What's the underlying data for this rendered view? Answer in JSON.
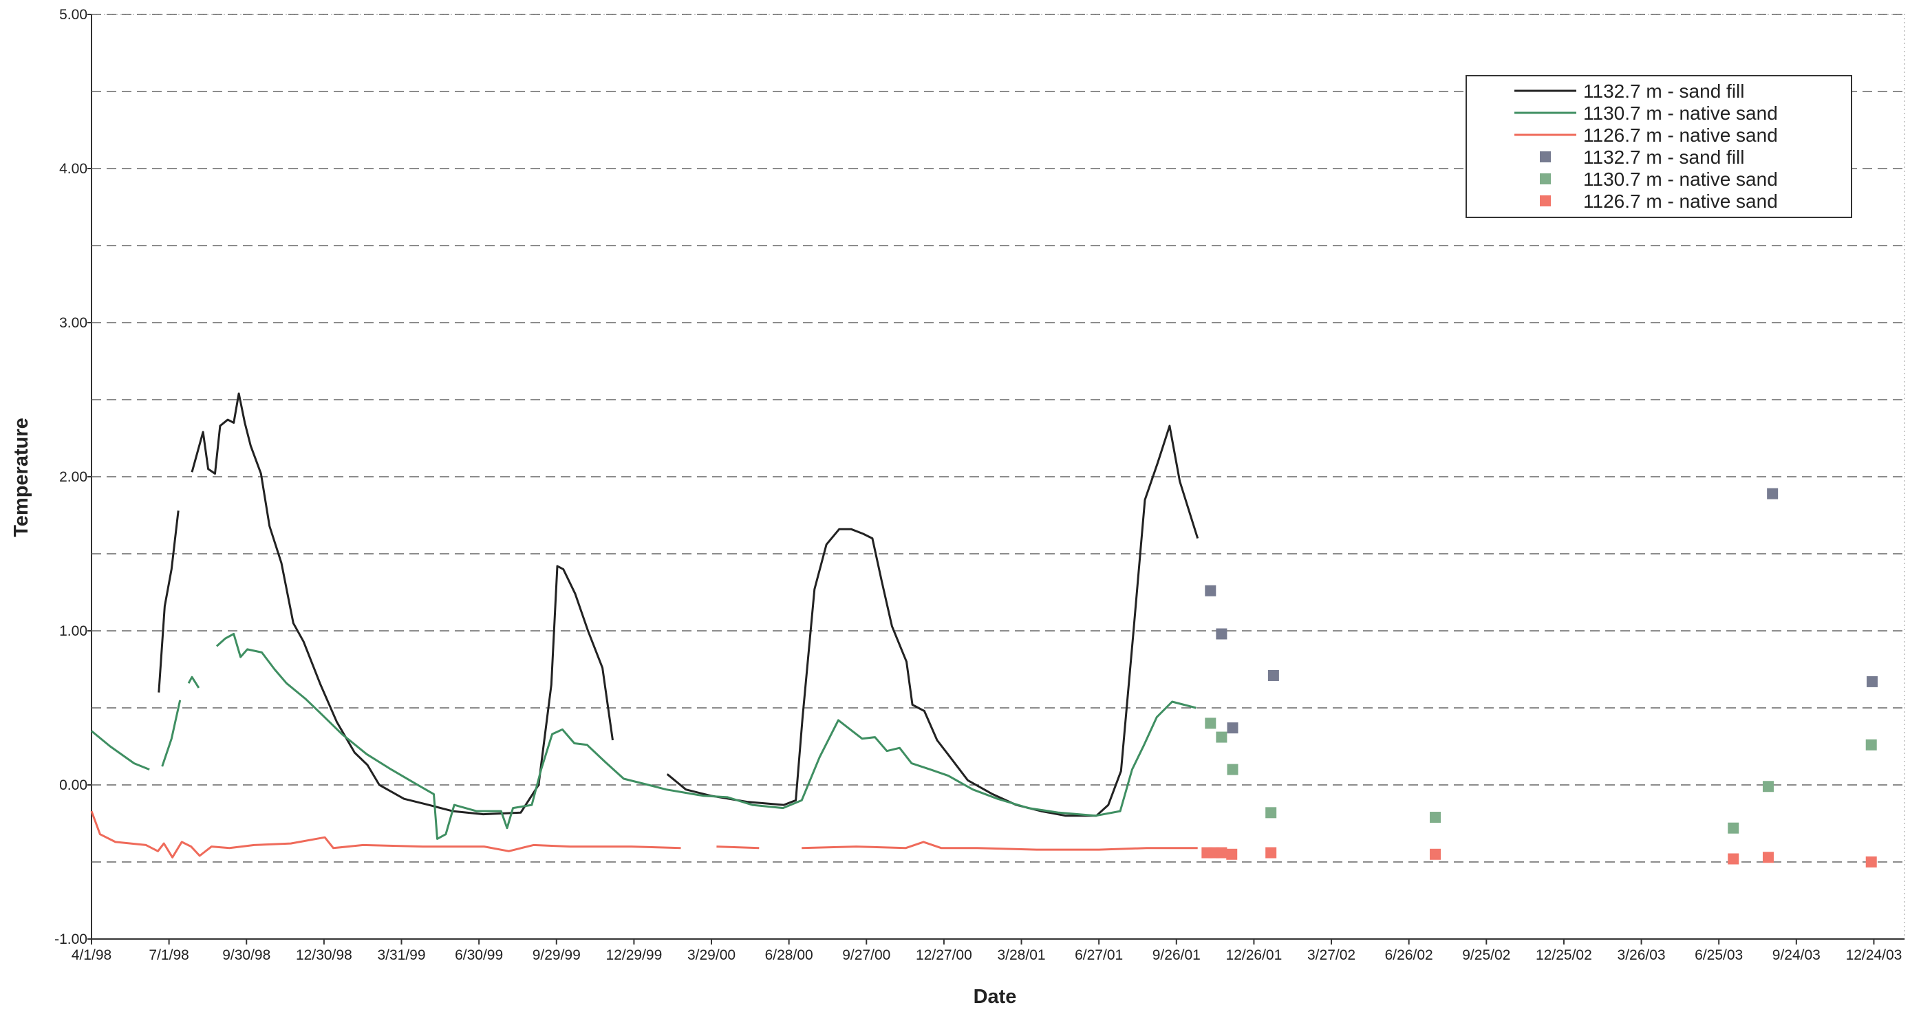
{
  "chart_data": {
    "type": "line",
    "x_label": "Date",
    "y_label": "Temperature",
    "xlim": [
      "1998-04-01",
      "2004-01-29"
    ],
    "xticks": [
      {
        "value": "1998-04-01",
        "label": "4/1/98"
      },
      {
        "value": "1998-07-01",
        "label": "7/1/98"
      },
      {
        "value": "1998-09-30",
        "label": "9/30/98"
      },
      {
        "value": "1998-12-30",
        "label": "12/30/98"
      },
      {
        "value": "1999-03-31",
        "label": "3/31/99"
      },
      {
        "value": "1999-06-30",
        "label": "6/30/99"
      },
      {
        "value": "1999-09-29",
        "label": "9/29/99"
      },
      {
        "value": "1999-12-29",
        "label": "12/29/99"
      },
      {
        "value": "2000-03-29",
        "label": "3/29/00"
      },
      {
        "value": "2000-06-28",
        "label": "6/28/00"
      },
      {
        "value": "2000-09-27",
        "label": "9/27/00"
      },
      {
        "value": "2000-12-27",
        "label": "12/27/00"
      },
      {
        "value": "2001-03-28",
        "label": "3/28/01"
      },
      {
        "value": "2001-06-27",
        "label": "6/27/01"
      },
      {
        "value": "2001-09-26",
        "label": "9/26/01"
      },
      {
        "value": "2001-12-26",
        "label": "12/26/01"
      },
      {
        "value": "2002-03-27",
        "label": "3/27/02"
      },
      {
        "value": "2002-06-26",
        "label": "6/26/02"
      },
      {
        "value": "2002-09-25",
        "label": "9/25/02"
      },
      {
        "value": "2002-12-25",
        "label": "12/25/02"
      },
      {
        "value": "2003-03-26",
        "label": "3/26/03"
      },
      {
        "value": "2003-06-25",
        "label": "6/25/03"
      },
      {
        "value": "2003-09-24",
        "label": "9/24/03"
      },
      {
        "value": "2003-12-24",
        "label": "12/24/03"
      }
    ],
    "ylim": [
      -1,
      5
    ],
    "yticks": [
      {
        "value": -1,
        "label": "-1.00"
      },
      {
        "value": 0,
        "label": "0.00"
      },
      {
        "value": 1,
        "label": "1.00"
      },
      {
        "value": 2,
        "label": "2.00"
      },
      {
        "value": 3,
        "label": "3.00"
      },
      {
        "value": 4,
        "label": "4.00"
      },
      {
        "value": 5,
        "label": "5.00"
      }
    ],
    "grid": true,
    "minor_ygrid": [
      -0.5,
      0.5,
      1.5,
      2.5,
      3.5,
      4.5
    ],
    "legend": "upper right",
    "series": [
      {
        "name": "1132.7 m - sand fill",
        "kind": "line",
        "color": "#222222",
        "x": [
          "1998-06-19",
          "1998-06-26",
          "1998-07-04",
          "1998-07-12",
          "1998-07-20",
          "1998-07-28",
          "1998-08-10",
          "1998-08-16",
          "1998-08-24",
          "1998-08-30",
          "1998-09-08",
          "1998-09-15",
          "1998-09-21",
          "1998-09-28",
          "1998-10-05",
          "1998-10-17",
          "1998-10-27",
          "1998-11-10",
          "1998-11-24",
          "1998-12-06",
          "1998-12-26",
          "1999-01-14",
          "1999-02-04",
          "1999-02-19",
          "1999-03-05",
          "1999-04-03",
          "1999-05-02",
          "1999-05-30",
          "1999-07-05",
          "1999-08-18",
          "1999-09-08",
          "1999-09-23",
          "1999-09-30",
          "1999-10-07",
          "1999-10-21",
          "1999-11-05",
          "1999-11-22",
          "1999-12-04",
          "1999-12-30",
          "2000-02-06",
          "2000-02-28",
          "2000-03-28",
          "2000-05-10",
          "2000-06-22",
          "2000-07-06",
          "2000-07-14",
          "2000-07-28",
          "2000-08-11",
          "2000-08-26",
          "2000-09-09",
          "2000-09-23",
          "2000-10-04",
          "2000-10-15",
          "2000-10-27",
          "2000-11-13",
          "2000-11-20",
          "2000-12-04",
          "2000-12-19",
          "2001-01-02",
          "2001-01-24",
          "2001-02-22",
          "2001-03-22",
          "2001-04-20",
          "2001-05-19",
          "2001-06-24",
          "2001-07-08",
          "2001-07-23",
          "2001-08-06",
          "2001-08-20",
          "2001-09-04",
          "2001-09-18",
          "2001-09-30",
          "2001-10-21"
        ],
        "values": [
          0.6,
          1.16,
          1.4,
          1.78,
          null,
          2.03,
          2.29,
          2.05,
          2.02,
          2.33,
          2.37,
          2.35,
          2.54,
          2.35,
          2.2,
          2.02,
          1.68,
          1.44,
          1.05,
          0.93,
          0.65,
          0.41,
          0.21,
          0.13,
          0.0,
          -0.09,
          -0.13,
          -0.17,
          -0.19,
          -0.18,
          0.0,
          0.65,
          1.42,
          1.4,
          1.24,
          1.0,
          0.76,
          0.29,
          null,
          0.07,
          -0.03,
          -0.07,
          -0.11,
          -0.13,
          -0.1,
          0.44,
          1.27,
          1.56,
          1.66,
          1.66,
          1.63,
          1.6,
          1.32,
          1.03,
          0.8,
          0.52,
          0.48,
          0.29,
          0.19,
          0.03,
          -0.06,
          -0.13,
          -0.17,
          -0.2,
          -0.2,
          -0.13,
          0.09,
          0.96,
          1.85,
          2.09,
          2.33,
          1.97,
          1.6
        ]
      },
      {
        "name": "1130.7 m - native sand",
        "kind": "line",
        "color": "#3f8f62",
        "x": [
          "1998-04-01",
          "1998-04-23",
          "1998-05-21",
          "1998-06-08",
          "1998-06-15",
          "1998-06-23",
          "1998-07-04",
          "1998-07-14",
          "1998-07-18",
          "1998-07-24",
          "1998-07-28",
          "1998-08-05",
          "1998-08-20",
          "1998-08-26",
          "1998-09-05",
          "1998-09-15",
          "1998-09-23",
          "1998-10-01",
          "1998-10-18",
          "1998-11-02",
          "1998-11-16",
          "1998-12-08",
          "1998-12-25",
          "1999-01-20",
          "1999-02-18",
          "1999-03-19",
          "1999-04-16",
          "1999-05-08",
          "1999-05-12",
          "1999-05-22",
          "1999-06-01",
          "1999-06-27",
          "1999-07-26",
          "1999-08-02",
          "1999-08-09",
          "1999-08-31",
          "1999-09-11",
          "1999-09-24",
          "1999-10-06",
          "1999-10-20",
          "1999-11-04",
          "1999-11-25",
          "1999-12-17",
          "2000-01-15",
          "2000-02-05",
          "2000-03-19",
          "2000-04-17",
          "2000-05-16",
          "2000-06-21",
          "2000-07-13",
          "2000-08-03",
          "2000-08-25",
          "2000-09-08",
          "2000-09-22",
          "2000-10-07",
          "2000-10-21",
          "2000-11-05",
          "2000-11-19",
          "2000-12-11",
          "2001-01-01",
          "2001-01-30",
          "2001-02-28",
          "2001-04-05",
          "2001-05-11",
          "2001-06-23",
          "2001-07-22",
          "2001-08-05",
          "2001-08-19",
          "2001-09-03",
          "2001-09-21",
          "2001-10-19"
        ],
        "values": [
          0.35,
          0.25,
          0.14,
          0.1,
          null,
          0.12,
          0.3,
          0.55,
          null,
          0.66,
          0.7,
          0.63,
          null,
          0.9,
          0.95,
          0.98,
          0.83,
          0.88,
          0.86,
          0.75,
          0.66,
          0.56,
          0.47,
          0.33,
          0.2,
          0.1,
          0.01,
          -0.06,
          -0.35,
          -0.32,
          -0.13,
          -0.17,
          -0.17,
          -0.28,
          -0.15,
          -0.13,
          0.1,
          0.33,
          0.36,
          0.27,
          0.26,
          0.15,
          0.04,
          0.0,
          -0.03,
          -0.07,
          -0.08,
          -0.13,
          -0.15,
          -0.1,
          0.18,
          0.42,
          0.36,
          0.3,
          0.31,
          0.22,
          0.24,
          0.14,
          0.1,
          0.06,
          -0.03,
          -0.09,
          -0.15,
          -0.18,
          -0.2,
          -0.17,
          0.1,
          0.26,
          0.44,
          0.54,
          0.5
        ]
      },
      {
        "name": "1126.7 m - native sand",
        "kind": "line",
        "color": "#ef6a5a",
        "x": [
          "1998-04-01",
          "1998-04-11",
          "1998-04-29",
          "1998-06-04",
          "1998-06-18",
          "1998-06-25",
          "1998-07-05",
          "1998-07-16",
          "1998-07-27",
          "1998-08-06",
          "1998-08-20",
          "1998-09-10",
          "1998-10-09",
          "1998-11-21",
          "1998-12-31",
          "1999-01-10",
          "1999-02-14",
          "1999-04-25",
          "1999-07-06",
          "1999-08-04",
          "1999-09-02",
          "1999-10-15",
          "1999-12-26",
          "2000-02-22",
          "2000-03-10",
          "2000-04-04",
          "2000-05-24",
          "2000-06-10",
          "2000-06-19",
          "2000-06-28",
          "2000-07-13",
          "2000-09-15",
          "2000-11-12",
          "2000-12-03",
          "2000-12-24",
          "2001-02-04",
          "2001-04-15",
          "2001-06-27",
          "2001-08-22",
          "2001-10-21"
        ],
        "values": [
          -0.17,
          -0.32,
          -0.37,
          -0.39,
          -0.43,
          -0.38,
          -0.47,
          -0.37,
          -0.4,
          -0.46,
          -0.4,
          -0.41,
          -0.39,
          -0.38,
          -0.34,
          -0.41,
          -0.39,
          -0.4,
          -0.4,
          -0.43,
          -0.39,
          -0.4,
          -0.4,
          -0.41,
          null,
          -0.4,
          -0.41,
          null,
          -0.41,
          null,
          -0.41,
          -0.4,
          -0.41,
          -0.37,
          -0.41,
          -0.41,
          -0.42,
          -0.42,
          -0.41,
          -0.41
        ]
      },
      {
        "name": "1132.7 m - sand fill",
        "kind": "scatter",
        "color": "#767b90",
        "x": [
          "2001-11-05",
          "2001-11-18",
          "2001-12-01",
          "2002-01-18",
          "2003-08-27",
          "2003-12-22"
        ],
        "values": [
          1.26,
          0.98,
          0.37,
          0.71,
          1.89,
          0.67
        ]
      },
      {
        "name": "1130.7 m - native sand",
        "kind": "scatter",
        "color": "#7fae8a",
        "x": [
          "2001-11-05",
          "2001-11-18",
          "2001-12-01",
          "2002-01-15",
          "2002-07-27",
          "2003-07-12",
          "2003-08-22",
          "2003-12-21"
        ],
        "values": [
          0.4,
          0.31,
          0.1,
          -0.18,
          -0.21,
          -0.28,
          -0.01,
          0.26
        ]
      },
      {
        "name": "1126.7 m - native sand",
        "kind": "scatter",
        "color": "#f2766a",
        "x": [
          "2001-11-01",
          "2001-11-09",
          "2001-11-18",
          "2001-11-30",
          "2002-01-15",
          "2002-07-27",
          "2003-07-12",
          "2003-08-22",
          "2003-12-21"
        ],
        "values": [
          -0.44,
          -0.44,
          -0.44,
          -0.45,
          -0.44,
          -0.45,
          -0.48,
          -0.47,
          -0.5
        ]
      }
    ]
  }
}
